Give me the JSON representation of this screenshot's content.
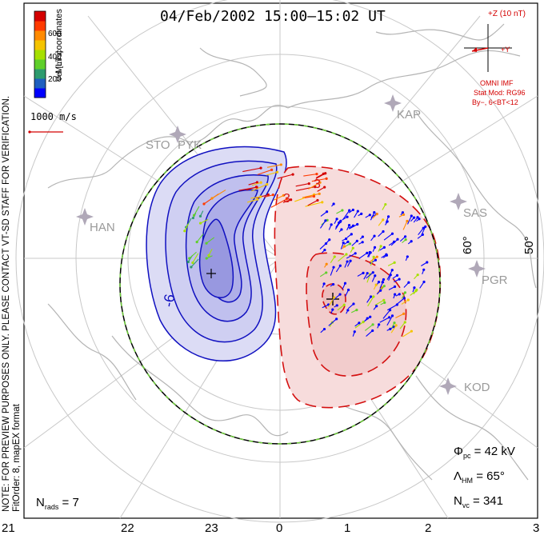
{
  "title": "04/Feb/2002 15:00–15:02 UT",
  "coordinate_system": "MLT coordinates",
  "colorbar": {
    "label": "Vel [m/s]",
    "ticks": [
      "600",
      "400",
      "200"
    ],
    "colors": [
      "#0000ff",
      "#1f5fbf",
      "#2e9b6e",
      "#5fcf2a",
      "#a6e000",
      "#f5c400",
      "#ff8a00",
      "#ff3a00",
      "#d40000"
    ]
  },
  "reference_vector": {
    "label": "1000 m/s",
    "color": "#d40000"
  },
  "imf": {
    "axis_z": "+Z (10 nT)",
    "axis_y": "+Y",
    "title": "OMNI IMF",
    "model": "Stat Mod: RG96",
    "condition": "By−, 6<BT<12",
    "color": "#d40000"
  },
  "watermark": {
    "line1": "NOTE: FOR PREVIEW PURPOSES ONLY. PLEASE CONTACT VT-SD STAFF FOR VERIFICATION.",
    "line2": "FitOrder: 8, mapEX format"
  },
  "stations": [
    "KAP",
    "STO",
    "PYK",
    "HAN",
    "SAS",
    "PGR",
    "KOD"
  ],
  "latitude_labels": [
    "60°",
    "50°"
  ],
  "contour_labels": [
    "-6",
    "3",
    "3"
  ],
  "stats": {
    "nrads_label": "N",
    "nrads_sub": "rads",
    "nrads_value": "= 7",
    "phi_label": "Φ",
    "phi_sub": "pc",
    "phi_value": "= 42 kV",
    "lambda_label": "Λ",
    "lambda_sub": "HM",
    "lambda_value": "= 65°",
    "nvc_label": "N",
    "nvc_sub": "vc",
    "nvc_value": "= 341"
  },
  "mlt_axis": [
    "21",
    "22",
    "23",
    "0",
    "1",
    "2",
    "3"
  ],
  "colors": {
    "negative_fill": "#dcdcf5",
    "positive_fill": "#f7dcdc",
    "negative_line": "#1010c0",
    "positive_line": "#d41010",
    "grid": "#c8c8c8",
    "land": "#b4b4b4"
  }
}
